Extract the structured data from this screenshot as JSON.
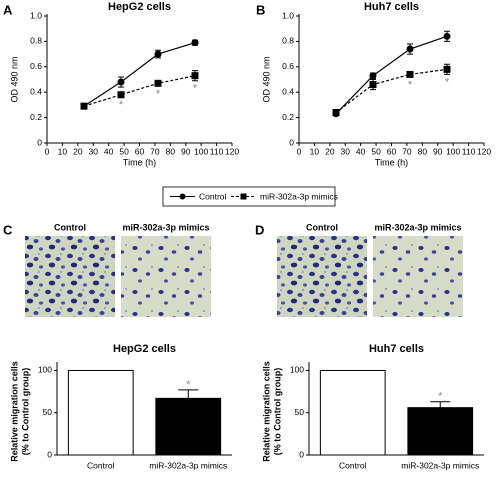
{
  "chart_data": [
    {
      "type": "line",
      "panel": "A",
      "title": "HepG2 cells",
      "xlabel": "Time (h)",
      "ylabel": "OD 490 nm",
      "x": [
        24,
        48,
        72,
        96
      ],
      "xlim": [
        0,
        120
      ],
      "xticks": [
        0,
        10,
        20,
        30,
        40,
        50,
        60,
        70,
        80,
        90,
        100,
        110,
        120
      ],
      "ylim": [
        0,
        1
      ],
      "yticks": [
        0,
        0.2,
        0.4,
        0.6,
        0.8,
        {
          "value": 1,
          "label": "1.0"
        }
      ],
      "series": [
        {
          "name": "Control",
          "color": "#000000",
          "marker": "circle",
          "linestyle": "solid",
          "values": [
            0.29,
            0.48,
            0.7,
            0.79
          ],
          "errors": [
            0.02,
            0.04,
            0.03,
            0.02
          ]
        },
        {
          "name": "miR-302a-3p mimics",
          "color": "#000000",
          "marker": "square",
          "linestyle": "dashed",
          "values": [
            0.29,
            0.38,
            0.47,
            0.53
          ],
          "errors": [
            0.02,
            0.02,
            0.02,
            0.04
          ],
          "significance": [
            null,
            "*",
            "*",
            "*"
          ]
        }
      ]
    },
    {
      "type": "line",
      "panel": "B",
      "title": "Huh7 cells",
      "xlabel": "Time (h)",
      "ylabel": "OD 490  nm",
      "x": [
        24,
        48,
        72,
        96
      ],
      "xlim": [
        0,
        120
      ],
      "xticks": [
        0,
        10,
        20,
        30,
        40,
        50,
        60,
        70,
        80,
        90,
        100,
        110,
        120
      ],
      "ylim": [
        0,
        1
      ],
      "yticks": [
        0,
        0.2,
        0.4,
        0.6,
        0.8,
        {
          "value": 1,
          "label": "1.0"
        }
      ],
      "series": [
        {
          "name": "Control",
          "color": "#000000",
          "marker": "circle",
          "linestyle": "solid",
          "values": [
            0.23,
            0.53,
            0.74,
            0.84
          ],
          "errors": [
            0.01,
            0.02,
            0.04,
            0.04
          ]
        },
        {
          "name": "miR-302a-3p mimics",
          "color": "#000000",
          "marker": "square",
          "linestyle": "dashed",
          "values": [
            0.24,
            0.46,
            0.54,
            0.58
          ],
          "errors": [
            0.01,
            0.04,
            0.02,
            0.04
          ],
          "significance": [
            null,
            null,
            "*",
            "*"
          ]
        }
      ]
    },
    {
      "type": "bar",
      "panel": "C",
      "image_labels": [
        "Control",
        "miR-302a-3p mimics"
      ],
      "title": "HepG2 cells",
      "ylabel": [
        "Relative migration cells",
        "(% to Control group)"
      ],
      "categories": [
        "Control",
        "miR-302a-3p mimics"
      ],
      "values": [
        100,
        67
      ],
      "errors": [
        null,
        10
      ],
      "colors": [
        "#ffffff",
        "#000000"
      ],
      "significance": [
        null,
        "*"
      ],
      "ylim": [
        0,
        110
      ],
      "yticks": [
        0,
        50,
        100
      ]
    },
    {
      "type": "bar",
      "panel": "D",
      "image_labels": [
        "Control",
        "miR-302a-3p mimics"
      ],
      "title": "Huh7 cells",
      "ylabel": [
        "Relative migration cells",
        "(% to Control group)"
      ],
      "categories": [
        "Control",
        "miR-302a-3p mimics"
      ],
      "values": [
        100,
        56
      ],
      "errors": [
        null,
        7
      ],
      "colors": [
        "#ffffff",
        "#000000"
      ],
      "significance": [
        null,
        "*"
      ],
      "ylim": [
        0,
        110
      ],
      "yticks": [
        0,
        50,
        100
      ]
    }
  ]
}
